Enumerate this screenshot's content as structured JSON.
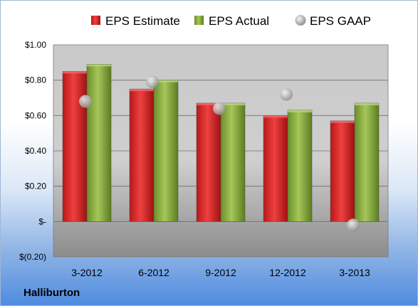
{
  "company": "Halliburton",
  "chart_data": {
    "type": "bar",
    "categories": [
      "3-2012",
      "6-2012",
      "9-2012",
      "12-2012",
      "3-2013"
    ],
    "series": [
      {
        "name": "EPS Estimate",
        "type": "bar",
        "color": "#d42a2a",
        "values": [
          0.85,
          0.75,
          0.67,
          0.6,
          0.57
        ]
      },
      {
        "name": "EPS Actual",
        "type": "bar",
        "color": "#7fa33a",
        "values": [
          0.89,
          0.8,
          0.67,
          0.63,
          0.67
        ]
      },
      {
        "name": "EPS GAAP",
        "type": "scatter",
        "color": "#b8b8b8",
        "values": [
          0.68,
          0.79,
          0.64,
          0.72,
          -0.02
        ]
      }
    ],
    "yticks": [
      {
        "value": 1.0,
        "label": "$1.00"
      },
      {
        "value": 0.8,
        "label": "$0.80"
      },
      {
        "value": 0.6,
        "label": "$0.60"
      },
      {
        "value": 0.4,
        "label": "$0.40"
      },
      {
        "value": 0.2,
        "label": "$0.20"
      },
      {
        "value": 0.0,
        "label": "$-"
      },
      {
        "value": -0.2,
        "label": "$(0.20)"
      }
    ],
    "ylim": [
      -0.2,
      1.0
    ],
    "grid": true,
    "legend_position": "top"
  }
}
